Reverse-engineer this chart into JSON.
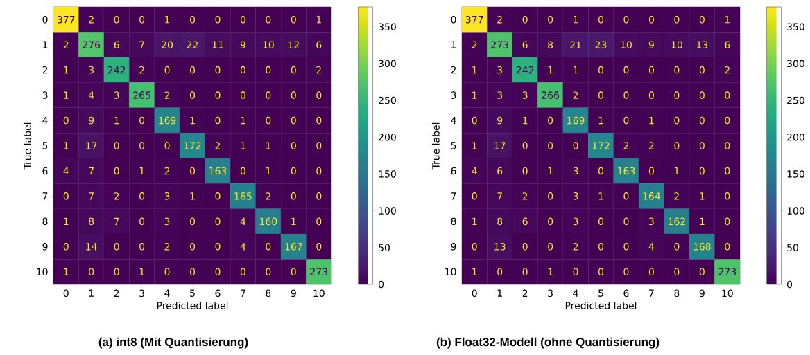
{
  "chart_data": [
    {
      "type": "heatmap",
      "xlabel": "Predicted label",
      "ylabel": "True label",
      "categories": [
        "0",
        "1",
        "2",
        "3",
        "4",
        "5",
        "6",
        "7",
        "8",
        "9",
        "10"
      ],
      "y_categories": [
        "0",
        "1",
        "2",
        "3",
        "4",
        "5",
        "6",
        "7",
        "8",
        "9",
        "10"
      ],
      "cells": [
        [
          377,
          2,
          0,
          0,
          1,
          0,
          0,
          0,
          0,
          0,
          1
        ],
        [
          2,
          276,
          6,
          7,
          20,
          22,
          11,
          9,
          10,
          12,
          6
        ],
        [
          1,
          3,
          242,
          2,
          0,
          0,
          0,
          0,
          0,
          0,
          2
        ],
        [
          1,
          4,
          3,
          265,
          2,
          0,
          0,
          0,
          0,
          0,
          0
        ],
        [
          0,
          9,
          1,
          0,
          169,
          1,
          0,
          1,
          0,
          0,
          0
        ],
        [
          1,
          17,
          0,
          0,
          0,
          172,
          2,
          1,
          1,
          0,
          0
        ],
        [
          4,
          7,
          0,
          1,
          2,
          0,
          163,
          0,
          1,
          0,
          0
        ],
        [
          0,
          7,
          2,
          0,
          3,
          1,
          0,
          165,
          2,
          0,
          0
        ],
        [
          1,
          8,
          7,
          0,
          3,
          0,
          0,
          4,
          160,
          1,
          0
        ],
        [
          0,
          14,
          0,
          0,
          2,
          0,
          0,
          4,
          0,
          167,
          0
        ],
        [
          1,
          0,
          0,
          1,
          0,
          0,
          0,
          0,
          0,
          0,
          273
        ]
      ],
      "data_labels": true,
      "clim": [
        0,
        377
      ],
      "cticks": [
        0,
        50,
        100,
        150,
        200,
        250,
        300,
        350
      ],
      "annotations": [
        "(a) int8 (Mit Quantisierung)"
      ]
    },
    {
      "type": "heatmap",
      "xlabel": "Predicted label",
      "ylabel": "True label",
      "categories": [
        "0",
        "1",
        "2",
        "3",
        "4",
        "5",
        "6",
        "7",
        "8",
        "9",
        "10"
      ],
      "y_categories": [
        "0",
        "1",
        "2",
        "3",
        "4",
        "5",
        "6",
        "7",
        "8",
        "9",
        "10"
      ],
      "cells": [
        [
          377,
          2,
          0,
          0,
          1,
          0,
          0,
          0,
          0,
          0,
          1
        ],
        [
          2,
          273,
          6,
          8,
          21,
          23,
          10,
          9,
          10,
          13,
          6
        ],
        [
          1,
          3,
          242,
          1,
          1,
          0,
          0,
          0,
          0,
          0,
          2
        ],
        [
          1,
          3,
          3,
          266,
          2,
          0,
          0,
          0,
          0,
          0,
          0
        ],
        [
          0,
          9,
          1,
          0,
          169,
          1,
          0,
          1,
          0,
          0,
          0
        ],
        [
          1,
          17,
          0,
          0,
          0,
          172,
          2,
          2,
          0,
          0,
          0
        ],
        [
          4,
          6,
          0,
          1,
          3,
          0,
          163,
          0,
          1,
          0,
          0
        ],
        [
          0,
          7,
          2,
          0,
          3,
          1,
          0,
          164,
          2,
          1,
          0
        ],
        [
          1,
          8,
          6,
          0,
          3,
          0,
          0,
          3,
          162,
          1,
          0
        ],
        [
          0,
          13,
          0,
          0,
          2,
          0,
          0,
          4,
          0,
          168,
          0
        ],
        [
          1,
          0,
          0,
          1,
          0,
          0,
          0,
          0,
          0,
          0,
          273
        ]
      ],
      "data_labels": true,
      "clim": [
        0,
        377
      ],
      "cticks": [
        0,
        50,
        100,
        150,
        200,
        250,
        300,
        350
      ],
      "annotations": [
        "(b) Float32-Modell (ohne Quantisierung)"
      ]
    }
  ]
}
